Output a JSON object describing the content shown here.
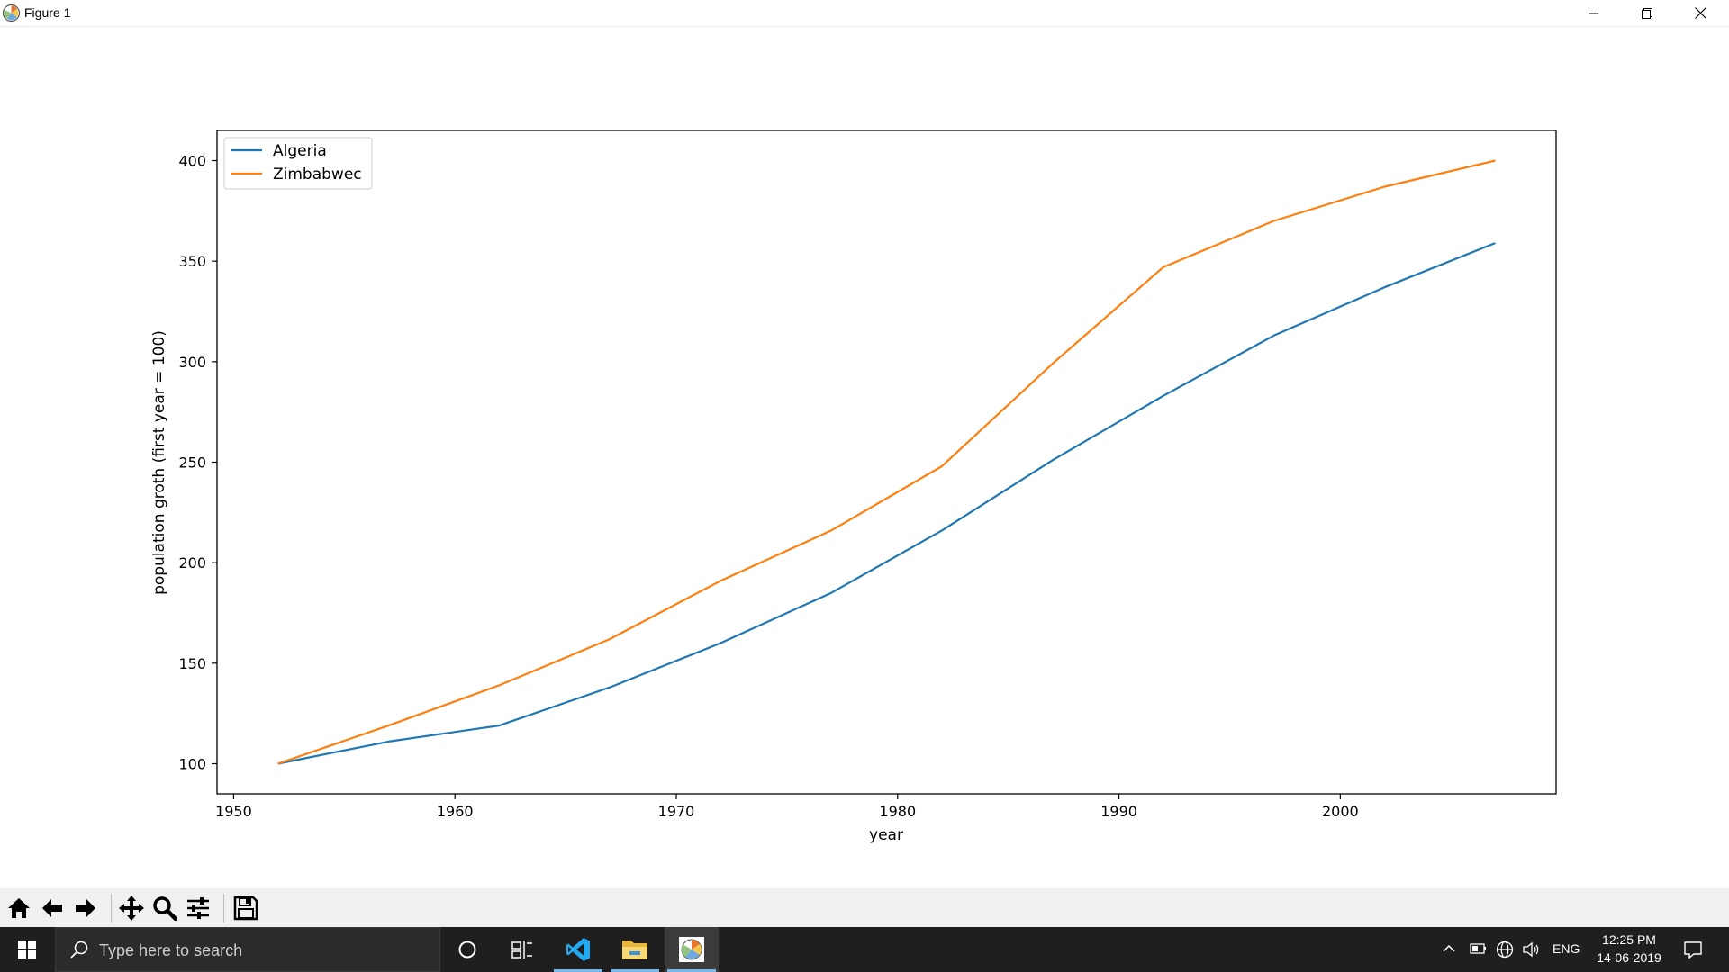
{
  "window": {
    "title": "Figure 1",
    "icon": "matplotlib-icon",
    "controls": [
      "minimize-icon",
      "maximize-icon",
      "close-icon"
    ]
  },
  "toolbar": {
    "buttons": [
      "home-icon",
      "back-arrow-icon",
      "forward-arrow-icon",
      "pan-icon",
      "zoom-magnifier-icon",
      "subplots-configure-icon",
      "save-floppy-icon"
    ]
  },
  "chart_data": {
    "type": "line",
    "title": "",
    "xlabel": "year",
    "ylabel": "population groth (first year = 100)",
    "xlim": [
      1949.25,
      2009.75
    ],
    "ylim": [
      85,
      415
    ],
    "xticks": [
      1950,
      1960,
      1970,
      1980,
      1990,
      2000
    ],
    "yticks": [
      100,
      150,
      200,
      250,
      300,
      350,
      400
    ],
    "x": [
      1952,
      1957,
      1962,
      1967,
      1972,
      1977,
      1982,
      1987,
      1992,
      1997,
      2002,
      2007
    ],
    "series": [
      {
        "name": "Algeria",
        "color": "#1f77b4",
        "values": [
          100,
          111,
          119,
          138,
          160,
          185,
          216,
          251,
          283,
          313,
          337,
          359
        ]
      },
      {
        "name": "Zimbabwec",
        "color": "#ff7f0e",
        "values": [
          100,
          119,
          139,
          162,
          191,
          216,
          248,
          299,
          347,
          370,
          387,
          400
        ]
      }
    ],
    "legend": "top-left",
    "grid": false
  },
  "taskbar": {
    "search_placeholder": "Type here to search",
    "apps": [
      "cortana-circle-icon",
      "task-view-icon",
      "vscode-icon",
      "file-explorer-icon",
      "matplotlib-figure-icon"
    ],
    "tray": {
      "language": "ENG",
      "time": "12:25 PM",
      "date": "14-06-2019"
    }
  }
}
